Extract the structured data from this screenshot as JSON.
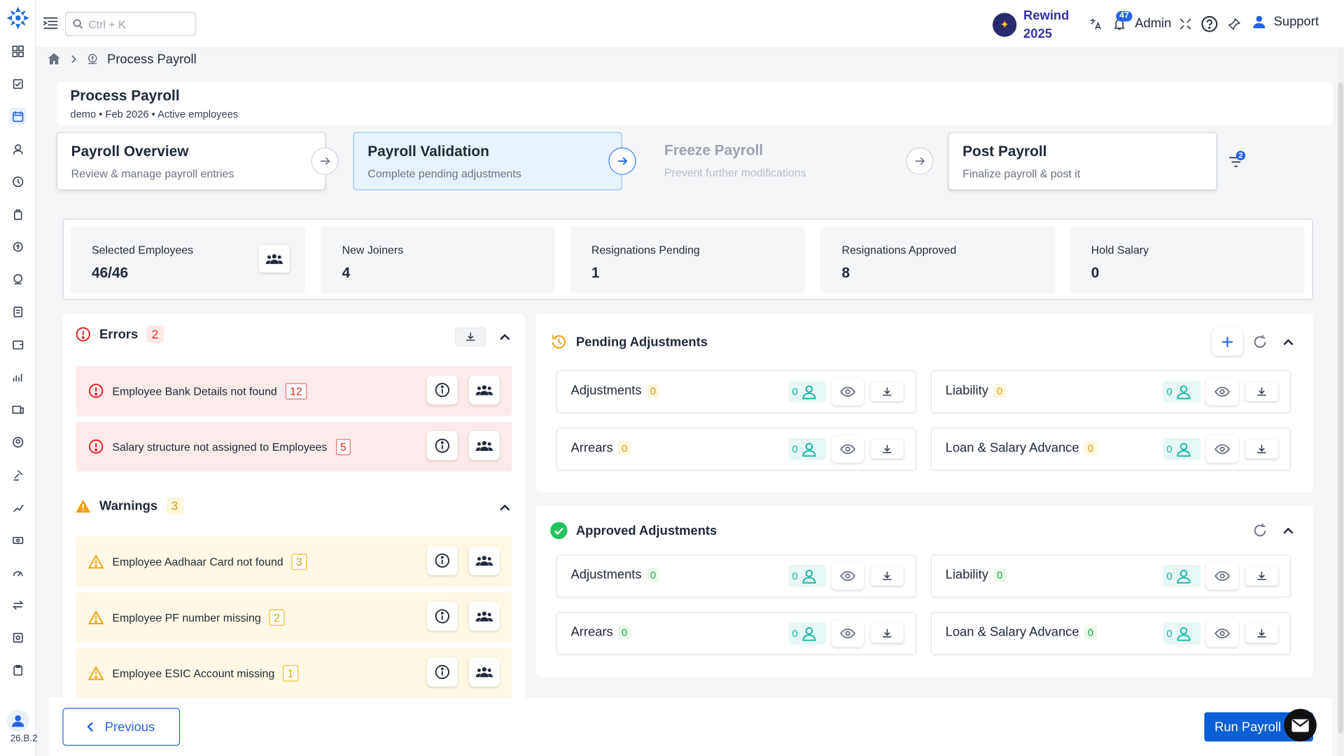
{
  "topbar": {
    "search_placeholder": "Ctrl + K",
    "rewind_line1": "Rewind",
    "rewind_line2": "2025",
    "notification_count": "47",
    "user_label": "Admin",
    "support_label": "Support"
  },
  "sidebar": {
    "version": "26.B.2"
  },
  "breadcrumb": {
    "current": "Process Payroll"
  },
  "header": {
    "title": "Process Payroll",
    "subtitle": "demo • Feb 2026 • Active employees"
  },
  "steps": [
    {
      "title": "Payroll Overview",
      "subtitle": "Review & manage payroll entries",
      "state": "done"
    },
    {
      "title": "Payroll Validation",
      "subtitle": "Complete pending adjustments",
      "state": "active"
    },
    {
      "title": "Freeze Payroll",
      "subtitle": "Prevent further modifications",
      "state": "disabled"
    },
    {
      "title": "Post Payroll",
      "subtitle": "Finalize payroll & post it",
      "state": "pending"
    }
  ],
  "filter_count": "2",
  "stats": [
    {
      "label": "Selected Employees",
      "value": "46/46"
    },
    {
      "label": "New Joiners",
      "value": "4"
    },
    {
      "label": "Resignations Pending",
      "value": "1"
    },
    {
      "label": "Resignations Approved",
      "value": "8"
    },
    {
      "label": "Hold Salary",
      "value": "0"
    }
  ],
  "errors": {
    "title": "Errors",
    "count": "2",
    "items": [
      {
        "text": "Employee Bank Details not found",
        "count": "12"
      },
      {
        "text": "Salary structure not assigned to Employees",
        "count": "5"
      }
    ]
  },
  "warnings": {
    "title": "Warnings",
    "count": "3",
    "items": [
      {
        "text": "Employee Aadhaar Card not found",
        "count": "3"
      },
      {
        "text": "Employee PF number missing",
        "count": "2"
      },
      {
        "text": "Employee ESIC Account missing",
        "count": "1"
      }
    ]
  },
  "pending": {
    "title": "Pending Adjustments",
    "cards": [
      {
        "name": "Adjustments",
        "count": "0",
        "employees": "0"
      },
      {
        "name": "Liability",
        "count": "0",
        "employees": "0"
      },
      {
        "name": "Arrears",
        "count": "0",
        "employees": "0"
      },
      {
        "name": "Loan & Salary Advance",
        "count": "0",
        "employees": "0"
      }
    ]
  },
  "approved": {
    "title": "Approved Adjustments",
    "cards": [
      {
        "name": "Adjustments",
        "count": "0",
        "employees": "0"
      },
      {
        "name": "Liability",
        "count": "0",
        "employees": "0"
      },
      {
        "name": "Arrears",
        "count": "0",
        "employees": "0"
      },
      {
        "name": "Loan & Salary Advance",
        "count": "0",
        "employees": "0"
      }
    ]
  },
  "footer": {
    "previous_label": "Previous",
    "run_label": "Run Payroll"
  },
  "colors": {
    "primary": "#0b5fd6",
    "error": "#dc2626",
    "warning": "#f59e0b",
    "success": "#22c55e",
    "teal": "#14b8a6"
  }
}
